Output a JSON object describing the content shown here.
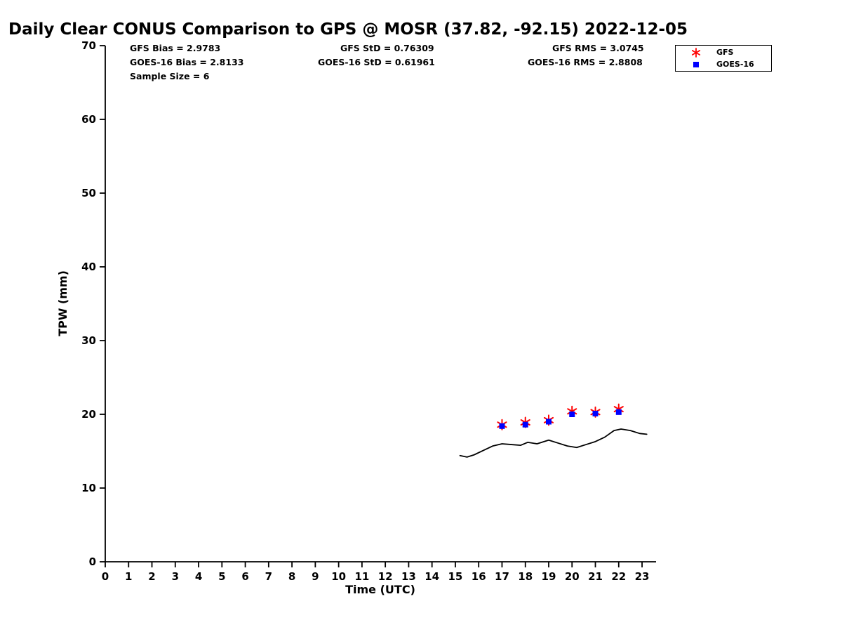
{
  "chart_data": {
    "type": "line",
    "title": "Daily Clear CONUS Comparison to GPS @ MOSR (37.82, -92.15) 2022-12-05",
    "xlabel": "Time (UTC)",
    "ylabel": "TPW (mm)",
    "xlim": [
      0,
      23.6
    ],
    "ylim": [
      0,
      70
    ],
    "xticks": [
      0,
      1,
      2,
      3,
      4,
      5,
      6,
      7,
      8,
      9,
      10,
      11,
      12,
      13,
      14,
      15,
      16,
      17,
      18,
      19,
      20,
      21,
      22,
      23
    ],
    "yticks": [
      0,
      10,
      20,
      30,
      40,
      50,
      60,
      70
    ],
    "grid": false,
    "legend_position": "top-right",
    "gps_line": {
      "name": "GPS",
      "color": "#000000",
      "x": [
        15.2,
        15.5,
        15.8,
        16.2,
        16.6,
        17.0,
        17.4,
        17.8,
        18.1,
        18.5,
        19.0,
        19.4,
        19.8,
        20.2,
        20.6,
        21.0,
        21.4,
        21.8,
        22.1,
        22.5,
        22.9,
        23.2
      ],
      "y": [
        14.4,
        14.2,
        14.5,
        15.1,
        15.7,
        16.0,
        15.9,
        15.8,
        16.2,
        16.0,
        16.5,
        16.1,
        15.7,
        15.5,
        15.9,
        16.3,
        16.9,
        17.8,
        18.0,
        17.8,
        17.4,
        17.3
      ]
    },
    "series": [
      {
        "name": "GFS",
        "marker": "asterisk",
        "color": "#ff0000",
        "x": [
          17,
          18,
          19,
          20,
          21,
          22
        ],
        "y": [
          18.6,
          18.9,
          19.2,
          20.4,
          20.3,
          20.7
        ]
      },
      {
        "name": "GOES-16",
        "marker": "square",
        "color": "#0000ff",
        "x": [
          17,
          18,
          19,
          20,
          21,
          22
        ],
        "y": [
          18.4,
          18.6,
          19.0,
          20.0,
          20.1,
          20.3
        ]
      }
    ]
  },
  "stats": {
    "gfs_bias": "GFS Bias = 2.9783",
    "gfs_std": "GFS StD = 0.76309",
    "gfs_rms": "GFS RMS = 3.0745",
    "goes_bias": "GOES-16 Bias = 2.8133",
    "goes_std": "GOES-16 StD = 0.61961",
    "goes_rms": "GOES-16 RMS = 2.8808",
    "sample_size": "Sample Size = 6"
  }
}
